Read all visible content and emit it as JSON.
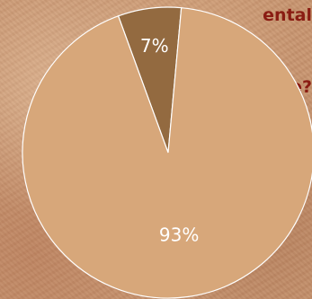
{
  "heading": {
    "line1": "ental",
    "line2": "e?"
  },
  "chart_data": {
    "type": "pie",
    "slices": [
      {
        "label": "7%",
        "value": 7,
        "color": "#936a40"
      },
      {
        "label": "93%",
        "value": 93,
        "color": "#d7a77a"
      }
    ],
    "start_angle_deg": -20,
    "outline_color": "#ffffff"
  }
}
